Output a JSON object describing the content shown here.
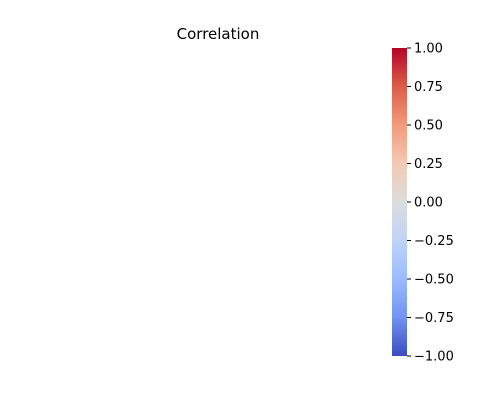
{
  "chart_data": {
    "type": "heatmap",
    "title": "Correlation",
    "xlabel": "",
    "ylabel": "",
    "categories": [],
    "values": [],
    "colorbar": {
      "colormap": "coolwarm",
      "vmin": -1.0,
      "vmax": 1.0,
      "ticks": [
        1.0,
        0.75,
        0.5,
        0.25,
        0.0,
        -0.25,
        -0.5,
        -0.75,
        -1.0
      ],
      "tick_labels": [
        "1.00",
        "0.75",
        "0.50",
        "0.25",
        "0.00",
        "−0.25",
        "−0.50",
        "−0.75",
        "−1.00"
      ],
      "colors": {
        "low": "#3b4cc0",
        "mid": "#dddddd",
        "high": "#b40426"
      },
      "placement": "right"
    }
  }
}
